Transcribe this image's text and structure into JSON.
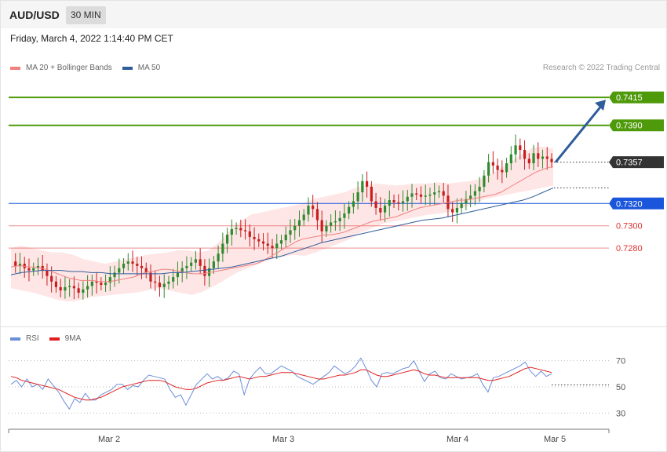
{
  "header": {
    "symbol": "AUD/USD",
    "timeframe": "30 MIN",
    "timestamp": "Friday, March 4, 2022 1:14:40 PM CET"
  },
  "legend": {
    "ma20": "MA 20 + Bollinger Bands",
    "ma50": "MA 50",
    "ma20_color": "#f08080",
    "ma50_color": "#2f5d9c"
  },
  "research": "Research © 2022 Trading Central",
  "chart_data": [
    {
      "type": "candlestick",
      "title": "",
      "y_range": [
        0.7214,
        0.7432
      ],
      "current_price": 0.7357,
      "levels": [
        {
          "label": "0.7415",
          "value": 0.7415,
          "kind": "resistance",
          "color": "#4f9a0a"
        },
        {
          "label": "0.7390",
          "value": 0.739,
          "kind": "resistance",
          "color": "#4f9a0a"
        },
        {
          "label": "0.7357",
          "value": 0.7357,
          "kind": "current",
          "color": "#333333"
        },
        {
          "label": "0.7320",
          "value": 0.732,
          "kind": "pivot",
          "color": "#1a56db"
        },
        {
          "label": "0.7300",
          "value": 0.73,
          "kind": "support",
          "color": "#e03030"
        },
        {
          "label": "0.7280",
          "value": 0.728,
          "kind": "support",
          "color": "#e03030"
        }
      ],
      "forecast_target": 0.7415,
      "x_ticks": [
        "Mar 2",
        "Mar 3",
        "Mar 4",
        "Mar 5"
      ],
      "close_path": [
        0.7268,
        0.7264,
        0.7266,
        0.7262,
        0.726,
        0.7262,
        0.7264,
        0.726,
        0.7255,
        0.725,
        0.7245,
        0.7242,
        0.7245,
        0.7246,
        0.7244,
        0.724,
        0.7243,
        0.7246,
        0.725,
        0.7249,
        0.7247,
        0.7249,
        0.7254,
        0.7258,
        0.7262,
        0.7266,
        0.7268,
        0.7266,
        0.7264,
        0.7262,
        0.7258,
        0.725,
        0.7249,
        0.7245,
        0.7248,
        0.725,
        0.7254,
        0.7258,
        0.7262,
        0.7264,
        0.7267,
        0.727,
        0.7264,
        0.7255,
        0.7262,
        0.7268,
        0.7275,
        0.7284,
        0.7292,
        0.7297,
        0.7298,
        0.7296,
        0.7295,
        0.729,
        0.7288,
        0.7286,
        0.7284,
        0.7282,
        0.728,
        0.7284,
        0.7287,
        0.7292,
        0.7296,
        0.73,
        0.7305,
        0.731,
        0.7318,
        0.7315,
        0.7305,
        0.7295,
        0.73,
        0.7303,
        0.7304,
        0.7307,
        0.7311,
        0.7317,
        0.7322,
        0.733,
        0.734,
        0.7335,
        0.7322,
        0.7316,
        0.7312,
        0.7318,
        0.7323,
        0.7321,
        0.732,
        0.7322,
        0.7326,
        0.7329,
        0.7328,
        0.7326,
        0.7327,
        0.7328,
        0.733,
        0.7331,
        0.7327,
        0.7315,
        0.7312,
        0.7316,
        0.732,
        0.7324,
        0.7327,
        0.7331,
        0.7335,
        0.7345,
        0.7357,
        0.7354,
        0.735,
        0.7348,
        0.7356,
        0.7364,
        0.7372,
        0.7368,
        0.736,
        0.7356,
        0.7365,
        0.736,
        0.7362,
        0.736,
        0.7357
      ],
      "ma20": [
        0.7263,
        0.7264,
        0.7264,
        0.7263,
        0.7263,
        0.7262,
        0.7261,
        0.7259,
        0.7257,
        0.7255,
        0.7253,
        0.7252,
        0.7251,
        0.7251,
        0.7251,
        0.725,
        0.725,
        0.725,
        0.7251,
        0.7252,
        0.7253,
        0.7254,
        0.7256,
        0.7258,
        0.7259,
        0.726,
        0.7261,
        0.7261,
        0.726,
        0.7259,
        0.7258,
        0.7257,
        0.7257,
        0.7257,
        0.7258,
        0.7259,
        0.726,
        0.7261,
        0.7262,
        0.7263,
        0.7264,
        0.7265,
        0.7266,
        0.7268,
        0.7271,
        0.7274,
        0.7277,
        0.728,
        0.7283,
        0.7286,
        0.7288,
        0.7289,
        0.729,
        0.7291,
        0.7292,
        0.7292,
        0.7293,
        0.7294,
        0.7296,
        0.7298,
        0.73,
        0.7302,
        0.7304,
        0.7305,
        0.7306,
        0.7307,
        0.7308,
        0.731,
        0.7312,
        0.7314,
        0.7316,
        0.7317,
        0.7318,
        0.7319,
        0.732,
        0.7321,
        0.7322,
        0.7323,
        0.7323,
        0.7324,
        0.7325,
        0.7326,
        0.7327,
        0.7328,
        0.733,
        0.7333,
        0.7336,
        0.7339,
        0.7342,
        0.7345,
        0.7348,
        0.735,
        0.7352,
        0.7353
      ],
      "ma50": [
        0.7256,
        0.7258,
        0.7259,
        0.726,
        0.726,
        0.726,
        0.7259,
        0.7259,
        0.7258,
        0.7258,
        0.7257,
        0.7257,
        0.7257,
        0.7257,
        0.7257,
        0.7257,
        0.7258,
        0.7258,
        0.7259,
        0.726,
        0.7261,
        0.7262,
        0.7263,
        0.7265,
        0.7267,
        0.7269,
        0.7271,
        0.7273,
        0.7276,
        0.7279,
        0.7282,
        0.7285,
        0.7287,
        0.7289,
        0.7291,
        0.7293,
        0.7295,
        0.7297,
        0.7299,
        0.7301,
        0.7303,
        0.7305,
        0.7306,
        0.7307,
        0.7309,
        0.7311,
        0.7313,
        0.7315,
        0.7317,
        0.7319,
        0.7321,
        0.7323,
        0.7326,
        0.733,
        0.7334
      ],
      "bb_upper": [
        0.728,
        0.7282,
        0.728,
        0.7278,
        0.7276,
        0.7276,
        0.7274,
        0.727,
        0.7268,
        0.7266,
        0.7268,
        0.727,
        0.7272,
        0.7274,
        0.7275,
        0.7276,
        0.7278,
        0.7278,
        0.7276,
        0.7278,
        0.7286,
        0.7296,
        0.7304,
        0.731,
        0.7312,
        0.7314,
        0.7316,
        0.7318,
        0.732,
        0.7324,
        0.7326,
        0.7328,
        0.733,
        0.7334,
        0.7336,
        0.7338,
        0.7337,
        0.7336,
        0.7337,
        0.7338,
        0.7338,
        0.7339,
        0.7338,
        0.7339,
        0.734,
        0.7342,
        0.7346,
        0.7352,
        0.7358,
        0.7364,
        0.737,
        0.7371,
        0.7369
      ],
      "bb_lower": [
        0.7244,
        0.7242,
        0.724,
        0.7237,
        0.7234,
        0.7232,
        0.7233,
        0.7236,
        0.7237,
        0.7238,
        0.7239,
        0.724,
        0.7242,
        0.7244,
        0.7242,
        0.724,
        0.7238,
        0.7241,
        0.7246,
        0.7252,
        0.7258,
        0.7262,
        0.7266,
        0.727,
        0.7272,
        0.7274,
        0.7273,
        0.7276,
        0.728,
        0.7284,
        0.7288,
        0.7294,
        0.7298,
        0.7302,
        0.7304,
        0.7306,
        0.7308,
        0.731,
        0.7311,
        0.7313,
        0.7316,
        0.732,
        0.7324,
        0.7326,
        0.7328,
        0.733,
        0.7332,
        0.7334,
        0.7336
      ]
    },
    {
      "type": "line",
      "title": "",
      "legend": [
        "RSI",
        "9MA"
      ],
      "y_range": [
        20,
        80
      ],
      "y_ticks": [
        30,
        50,
        70
      ],
      "series": [
        {
          "name": "RSI",
          "color": "#6a8fd8",
          "values": [
            52,
            55,
            50,
            56,
            50,
            52,
            48,
            56,
            51,
            46,
            39,
            33,
            41,
            38,
            45,
            40,
            40,
            44,
            46,
            48,
            52,
            52,
            48,
            51,
            50,
            55,
            59,
            58,
            57,
            56,
            48,
            42,
            44,
            36,
            44,
            52,
            56,
            60,
            56,
            58,
            55,
            57,
            62,
            60,
            44,
            56,
            61,
            65,
            60,
            60,
            63,
            66,
            64,
            62,
            58,
            56,
            54,
            52,
            55,
            58,
            61,
            66,
            63,
            60,
            62,
            66,
            72,
            64,
            55,
            50,
            60,
            61,
            60,
            62,
            64,
            65,
            70,
            62,
            54,
            60,
            62,
            57,
            56,
            60,
            58,
            56,
            57,
            58,
            60,
            52,
            46,
            57,
            58,
            60,
            62,
            64,
            66,
            69,
            62,
            58,
            62,
            58,
            60
          ]
        },
        {
          "name": "9MA",
          "color": "#e02020",
          "values": [
            58,
            57,
            55,
            54,
            53,
            52,
            51,
            50,
            49,
            48,
            46,
            44,
            42,
            41,
            40,
            40,
            41,
            42,
            44,
            46,
            48,
            50,
            51,
            52,
            53,
            54,
            55,
            55,
            55,
            54,
            52,
            50,
            49,
            48,
            48,
            49,
            51,
            53,
            54,
            55,
            55,
            56,
            57,
            58,
            57,
            56,
            57,
            58,
            58,
            59,
            60,
            61,
            61,
            61,
            60,
            59,
            58,
            57,
            56,
            56,
            57,
            58,
            59,
            59,
            60,
            61,
            63,
            63,
            61,
            59,
            58,
            58,
            59,
            60,
            61,
            62,
            63,
            62,
            60,
            59,
            59,
            58,
            57,
            57,
            57,
            57,
            57,
            57,
            57,
            56,
            55,
            55,
            56,
            57,
            58,
            60,
            62,
            64,
            65,
            64,
            63,
            62,
            61
          ]
        }
      ]
    }
  ]
}
